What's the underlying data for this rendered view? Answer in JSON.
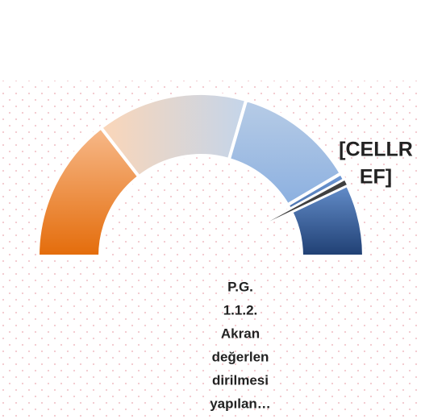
{
  "chart_data": {
    "type": "gauge",
    "segments": [
      {
        "value": 29,
        "colors": [
          "#f7b98a",
          "#e46c0a"
        ]
      },
      {
        "value": 30,
        "colors": [
          "#fbd6b8",
          "#c4d5ea"
        ]
      },
      {
        "value": 24,
        "colors": [
          "#b7cce6",
          "#8cb0e0"
        ]
      },
      {
        "value": 17,
        "colors": [
          "#6f9ad8",
          "#1f3f73"
        ]
      }
    ],
    "needle": {
      "value": 85,
      "color": "#404040"
    },
    "needle_label": [
      "[CELLR",
      "EF]"
    ],
    "title": [
      "P.G.",
      "1.1.2.",
      "Akran",
      "değerlen",
      "dirilmesi",
      "yapılan…"
    ]
  }
}
